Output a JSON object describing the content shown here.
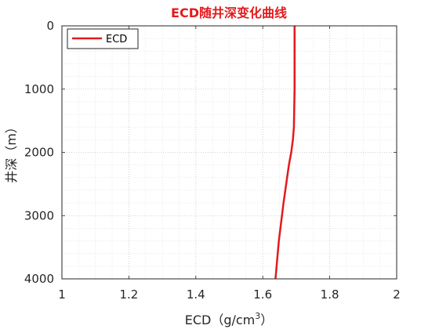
{
  "chart_data": {
    "type": "line",
    "title": "ECD随井深变化曲线",
    "title_color": "#e41a1c",
    "xlabel_main": "ECD（g/cm",
    "xlabel_sup": "3",
    "xlabel_end": "）",
    "ylabel": "井深（m）",
    "xlim": [
      1,
      2
    ],
    "ylim": [
      0,
      4000
    ],
    "y_reversed": true,
    "grid": true,
    "minor_grid": true,
    "legend_position": "top-left",
    "xticks": [
      1,
      1.2,
      1.4,
      1.6,
      1.8,
      2
    ],
    "xtick_labels": [
      "1",
      "1.2",
      "1.4",
      "1.6",
      "1.8",
      "2"
    ],
    "yticks": [
      0,
      1000,
      2000,
      3000,
      4000
    ],
    "ytick_labels": [
      "0",
      "1000",
      "2000",
      "3000",
      "4000"
    ],
    "series": [
      {
        "name": "ECD",
        "color": "#e41a1c",
        "x": [
          1.695,
          1.695,
          1.695,
          1.693,
          1.69,
          1.685,
          1.678,
          1.67,
          1.662,
          1.655,
          1.648,
          1.643,
          1.638
        ],
        "y": [
          0,
          500,
          1000,
          1600,
          1800,
          2000,
          2200,
          2500,
          2800,
          3100,
          3400,
          3700,
          4000
        ]
      }
    ]
  }
}
